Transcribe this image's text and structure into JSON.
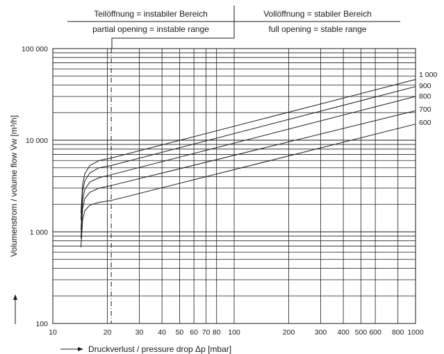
{
  "header": {
    "left_de": "Teilöffnung = instabiler Bereich",
    "left_en": "partial opening = instable range",
    "right_de": "Vollöffnung = stabiler Bereich",
    "right_en": "full opening = stable range"
  },
  "chart_data": {
    "type": "line",
    "xscale": "log",
    "yscale": "log",
    "xlim": [
      10,
      1000
    ],
    "ylim": [
      100,
      100000
    ],
    "xlabel": "Druckverlust / pressure drop Δp [mbar]",
    "ylabel": "Volumenstrom / volume flow V̇w [m³/h]",
    "x_ticks": [
      10,
      20,
      30,
      40,
      50,
      60,
      70,
      80,
      100,
      200,
      300,
      400,
      500,
      600,
      800,
      1000
    ],
    "x_tick_labels": [
      "10",
      "20",
      "30",
      "40",
      "50",
      "60",
      "70",
      "80",
      "100",
      "200",
      "300",
      "400",
      "500",
      "600",
      "800",
      "1000"
    ],
    "y_ticks": [
      100,
      1000,
      10000,
      100000
    ],
    "y_tick_labels": [
      "100",
      "1 000",
      "10 000",
      "100 000"
    ],
    "grid": true,
    "boundary_dashdot_x": 21,
    "series": [
      {
        "name": "1 000",
        "x": [
          14.3,
          14.6,
          15,
          16,
          18,
          21,
          1000
        ],
        "y": [
          1600,
          3300,
          4300,
          5300,
          6000,
          6400,
          46000
        ]
      },
      {
        "name": "900",
        "x": [
          14.3,
          14.6,
          15,
          16,
          18,
          21,
          1000
        ],
        "y": [
          1350,
          2800,
          3600,
          4400,
          5000,
          5300,
          38500
        ]
      },
      {
        "name": "800",
        "x": [
          14.3,
          14.6,
          15,
          16,
          18,
          21,
          1000
        ],
        "y": [
          1050,
          2200,
          2900,
          3500,
          3900,
          4200,
          30000
        ]
      },
      {
        "name": "700",
        "x": [
          14.3,
          14.6,
          15,
          16,
          18,
          21,
          1000
        ],
        "y": [
          850,
          1800,
          2300,
          2700,
          3000,
          3200,
          21000
        ]
      },
      {
        "name": "600",
        "x": [
          14.3,
          14.6,
          15,
          16,
          18,
          21,
          1000
        ],
        "y": [
          680,
          1350,
          1700,
          1950,
          2100,
          2200,
          15000
        ]
      }
    ]
  }
}
